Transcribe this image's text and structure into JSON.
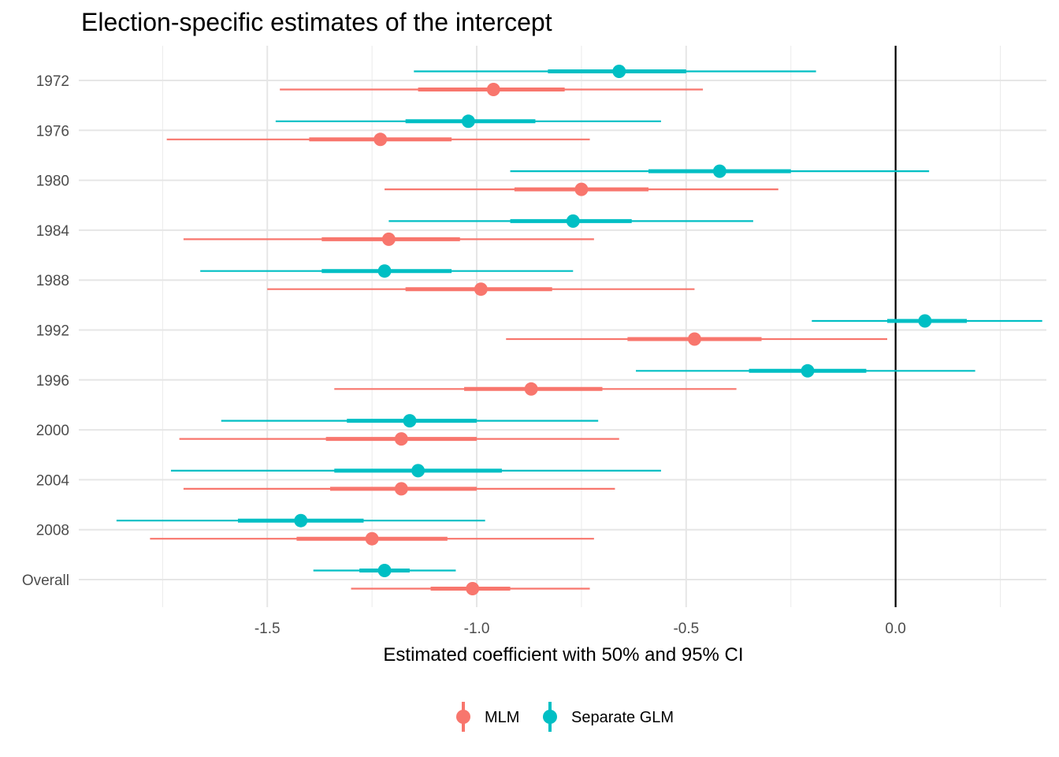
{
  "chart_data": {
    "type": "dot-and-whisker",
    "title": "Election-specific estimates of the intercept",
    "xlabel": "Estimated coefficient with 50% and 95% CI",
    "ylabel": "",
    "xlim": [
      -1.95,
      0.36
    ],
    "x_ticks": [
      -1.5,
      -1.0,
      -0.5,
      0.0
    ],
    "x_tick_labels": [
      "-1.5",
      "-1.0",
      "-0.5",
      "0.0"
    ],
    "reference_line": 0.0,
    "categories": [
      "1972",
      "1976",
      "1980",
      "1984",
      "1988",
      "1992",
      "1996",
      "2000",
      "2004",
      "2008",
      "Overall"
    ],
    "legend": {
      "position": "bottom"
    },
    "series": [
      {
        "name": "MLM",
        "color": "#F8766D",
        "points": [
          {
            "est": -0.96,
            "lo50": -1.14,
            "hi50": -0.79,
            "lo95": -1.47,
            "hi95": -0.46
          },
          {
            "est": -1.23,
            "lo50": -1.4,
            "hi50": -1.06,
            "lo95": -1.74,
            "hi95": -0.73
          },
          {
            "est": -0.75,
            "lo50": -0.91,
            "hi50": -0.59,
            "lo95": -1.22,
            "hi95": -0.28
          },
          {
            "est": -1.21,
            "lo50": -1.37,
            "hi50": -1.04,
            "lo95": -1.7,
            "hi95": -0.72
          },
          {
            "est": -0.99,
            "lo50": -1.17,
            "hi50": -0.82,
            "lo95": -1.5,
            "hi95": -0.48
          },
          {
            "est": -0.48,
            "lo50": -0.64,
            "hi50": -0.32,
            "lo95": -0.93,
            "hi95": -0.02
          },
          {
            "est": -0.87,
            "lo50": -1.03,
            "hi50": -0.7,
            "lo95": -1.34,
            "hi95": -0.38
          },
          {
            "est": -1.18,
            "lo50": -1.36,
            "hi50": -1.0,
            "lo95": -1.71,
            "hi95": -0.66
          },
          {
            "est": -1.18,
            "lo50": -1.35,
            "hi50": -1.0,
            "lo95": -1.7,
            "hi95": -0.67
          },
          {
            "est": -1.25,
            "lo50": -1.43,
            "hi50": -1.07,
            "lo95": -1.78,
            "hi95": -0.72
          },
          {
            "est": -1.01,
            "lo50": -1.11,
            "hi50": -0.92,
            "lo95": -1.3,
            "hi95": -0.73
          }
        ]
      },
      {
        "name": "Separate GLM",
        "color": "#00BFC4",
        "points": [
          {
            "est": -0.66,
            "lo50": -0.83,
            "hi50": -0.5,
            "lo95": -1.15,
            "hi95": -0.19
          },
          {
            "est": -1.02,
            "lo50": -1.17,
            "hi50": -0.86,
            "lo95": -1.48,
            "hi95": -0.56
          },
          {
            "est": -0.42,
            "lo50": -0.59,
            "hi50": -0.25,
            "lo95": -0.92,
            "hi95": 0.08
          },
          {
            "est": -0.77,
            "lo50": -0.92,
            "hi50": -0.63,
            "lo95": -1.21,
            "hi95": -0.34
          },
          {
            "est": -1.22,
            "lo50": -1.37,
            "hi50": -1.06,
            "lo95": -1.66,
            "hi95": -0.77
          },
          {
            "est": 0.07,
            "lo50": -0.02,
            "hi50": 0.17,
            "lo95": -0.2,
            "hi95": 0.35
          },
          {
            "est": -0.21,
            "lo50": -0.35,
            "hi50": -0.07,
            "lo95": -0.62,
            "hi95": 0.19
          },
          {
            "est": -1.16,
            "lo50": -1.31,
            "hi50": -1.0,
            "lo95": -1.61,
            "hi95": -0.71
          },
          {
            "est": -1.14,
            "lo50": -1.34,
            "hi50": -0.94,
            "lo95": -1.73,
            "hi95": -0.56
          },
          {
            "est": -1.42,
            "lo50": -1.57,
            "hi50": -1.27,
            "lo95": -1.86,
            "hi95": -0.98
          },
          {
            "est": -1.22,
            "lo50": -1.28,
            "hi50": -1.16,
            "lo95": -1.39,
            "hi95": -1.05
          }
        ]
      }
    ]
  }
}
